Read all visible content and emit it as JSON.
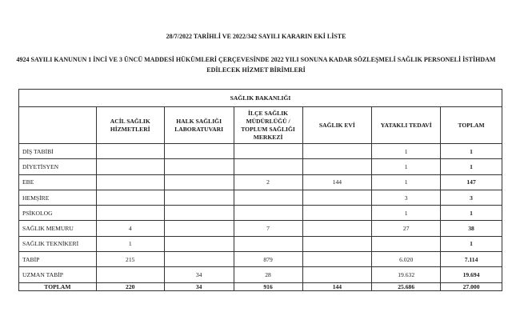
{
  "title": "28/7/2022 TARİHLİ VE 2022/342 SAYILI KARARIN EKİ LİSTE",
  "subtitle_line1": "4924 SAYILI KANUNUN 1 İNCİ VE 3 ÜNCÜ MADDESİ HÜKÜMLERİ ÇERÇEVESİNDE 2022 YILI SONUNA KADAR SÖZLEŞMELİ SAĞLIK PERSONELİ İSTİHDAM",
  "subtitle_line2": "EDİLECEK HİZMET BİRİMLERİ",
  "table": {
    "ministry": "SAĞLIK BAKANLIĞI",
    "columns": [
      "",
      "ACİL SAĞLIK HİZMETLERİ",
      "HALK SAĞLIĞI LABORATUVARI",
      "İLÇE SAĞLIK MÜDÜRLÜĞÜ / TOPLUM SAĞLIĞI MERKEZİ",
      "SAĞLIK EVİ",
      "YATAKLI TEDAVİ",
      "TOPLAM"
    ],
    "rows": [
      [
        "DİŞ TABİBİ",
        "",
        "",
        "",
        "",
        "1",
        "1"
      ],
      [
        "DİYETİSYEN",
        "",
        "",
        "",
        "",
        "1",
        "1"
      ],
      [
        "EBE",
        "",
        "",
        "2",
        "144",
        "1",
        "147"
      ],
      [
        "HEMŞİRE",
        "",
        "",
        "",
        "",
        "3",
        "3"
      ],
      [
        "PSİKOLOG",
        "",
        "",
        "",
        "",
        "1",
        "1"
      ],
      [
        "SAĞLIK MEMURU",
        "4",
        "",
        "7",
        "",
        "27",
        "38"
      ],
      [
        "SAĞLIK TEKNİKERİ",
        "1",
        "",
        "",
        "",
        "",
        "1"
      ],
      [
        "TABİP",
        "215",
        "",
        "879",
        "",
        "6.020",
        "7.114"
      ],
      [
        "UZMAN TABİP",
        "",
        "34",
        "28",
        "",
        "19.632",
        "19.694"
      ]
    ],
    "total": [
      "TOPLAM",
      "220",
      "34",
      "916",
      "144",
      "25.686",
      "27.000"
    ]
  }
}
